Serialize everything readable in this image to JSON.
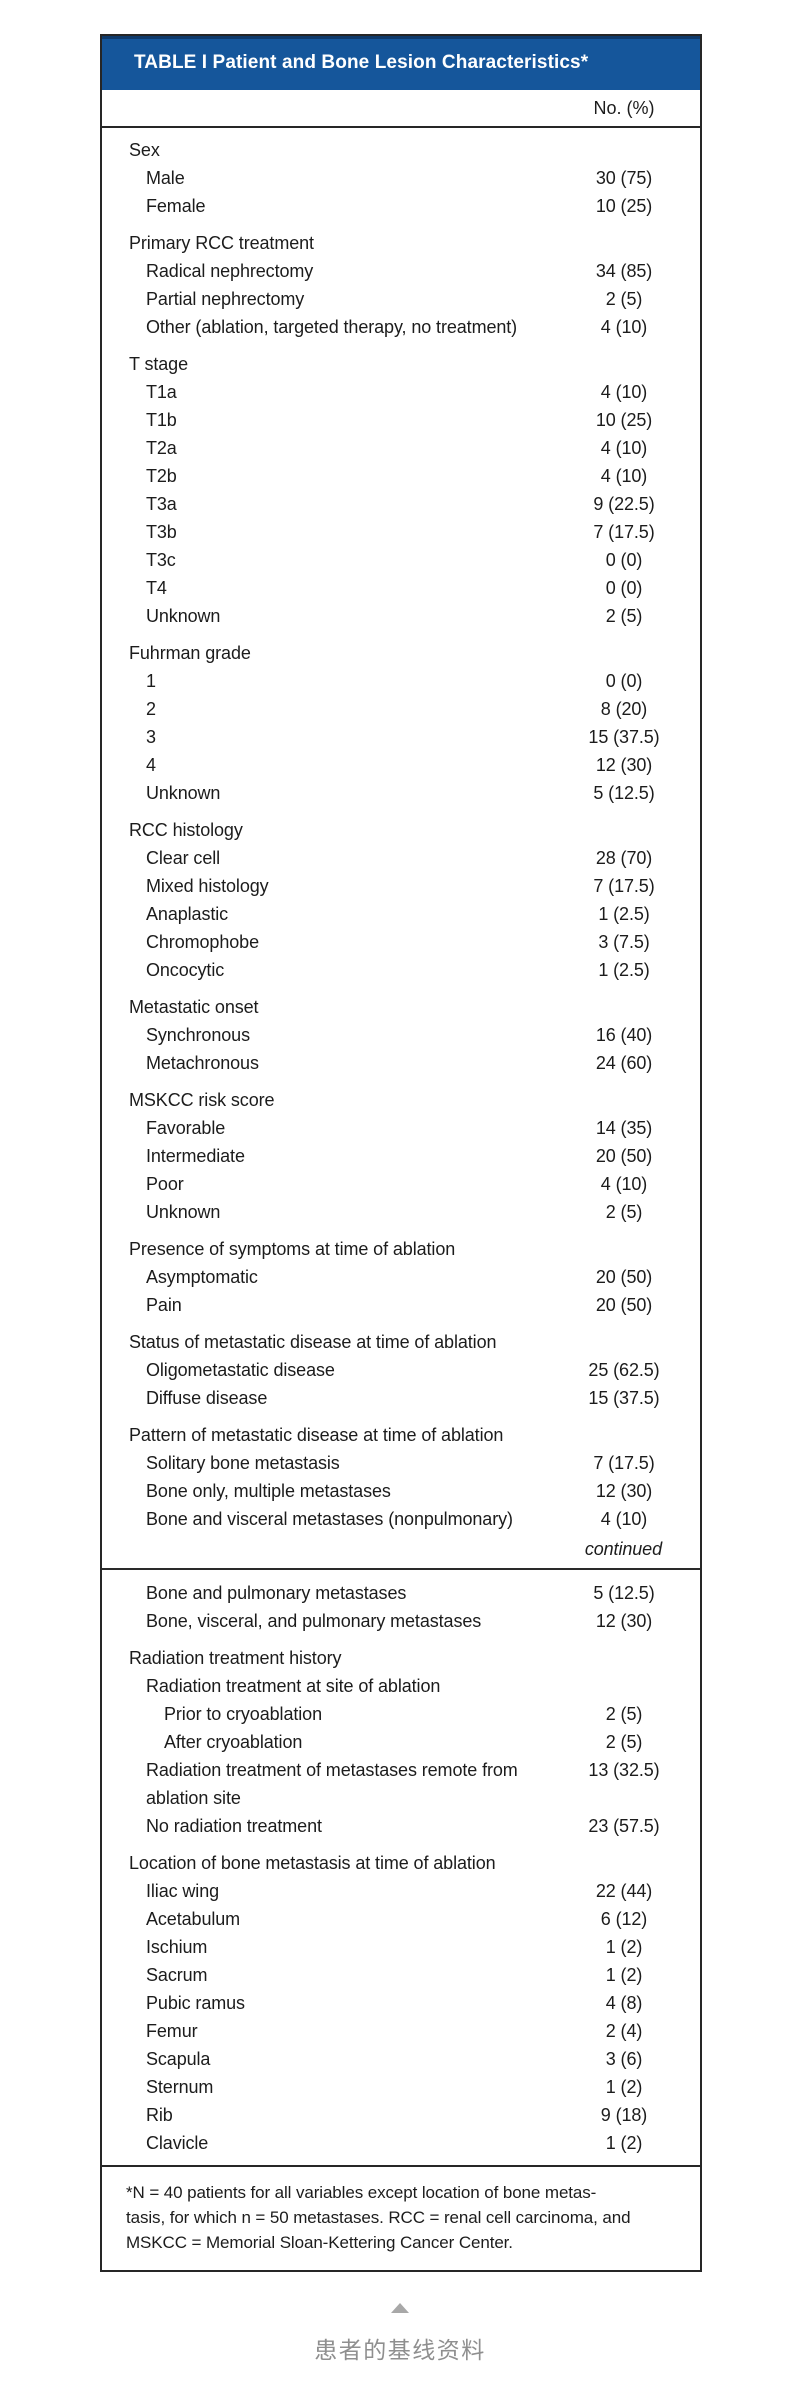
{
  "colors": {
    "header_bg": "#15569b",
    "header_top_edge": "#0e3a6b",
    "border": "#262626",
    "body_text": "#1c1c1c",
    "caption_text": "#8f8f8f",
    "triangle": "#a8a8a8"
  },
  "table": {
    "title": "TABLE I Patient and Bone Lesion Characteristics*",
    "column_header": "No. (%)",
    "rows": [
      {
        "type": "section",
        "label": "Sex"
      },
      {
        "type": "item",
        "indent": 1,
        "label": "Male",
        "value": "30 (75)"
      },
      {
        "type": "item",
        "indent": 1,
        "label": "Female",
        "value": "10 (25)"
      },
      {
        "type": "section",
        "label": "Primary RCC treatment"
      },
      {
        "type": "item",
        "indent": 1,
        "label": "Radical nephrectomy",
        "value": "34 (85)"
      },
      {
        "type": "item",
        "indent": 1,
        "label": "Partial nephrectomy",
        "value": "2 (5)"
      },
      {
        "type": "item",
        "indent": 1,
        "label": "Other (ablation, targeted therapy, no treatment)",
        "value": "4 (10)"
      },
      {
        "type": "section",
        "label": "T stage"
      },
      {
        "type": "item",
        "indent": 1,
        "label": "T1a",
        "value": "4 (10)"
      },
      {
        "type": "item",
        "indent": 1,
        "label": "T1b",
        "value": "10 (25)"
      },
      {
        "type": "item",
        "indent": 1,
        "label": "T2a",
        "value": "4 (10)"
      },
      {
        "type": "item",
        "indent": 1,
        "label": "T2b",
        "value": "4 (10)"
      },
      {
        "type": "item",
        "indent": 1,
        "label": "T3a",
        "value": "9 (22.5)"
      },
      {
        "type": "item",
        "indent": 1,
        "label": "T3b",
        "value": "7 (17.5)"
      },
      {
        "type": "item",
        "indent": 1,
        "label": "T3c",
        "value": "0 (0)"
      },
      {
        "type": "item",
        "indent": 1,
        "label": "T4",
        "value": "0 (0)"
      },
      {
        "type": "item",
        "indent": 1,
        "label": "Unknown",
        "value": "2 (5)"
      },
      {
        "type": "section",
        "label": "Fuhrman grade"
      },
      {
        "type": "item",
        "indent": 1,
        "label": "1",
        "value": "0 (0)"
      },
      {
        "type": "item",
        "indent": 1,
        "label": "2",
        "value": "8 (20)"
      },
      {
        "type": "item",
        "indent": 1,
        "label": "3",
        "value": "15 (37.5)"
      },
      {
        "type": "item",
        "indent": 1,
        "label": "4",
        "value": "12 (30)"
      },
      {
        "type": "item",
        "indent": 1,
        "label": "Unknown",
        "value": "5 (12.5)"
      },
      {
        "type": "section",
        "label": "RCC histology"
      },
      {
        "type": "item",
        "indent": 1,
        "label": "Clear cell",
        "value": "28 (70)"
      },
      {
        "type": "item",
        "indent": 1,
        "label": "Mixed histology",
        "value": "7 (17.5)"
      },
      {
        "type": "item",
        "indent": 1,
        "label": "Anaplastic",
        "value": "1 (2.5)"
      },
      {
        "type": "item",
        "indent": 1,
        "label": "Chromophobe",
        "value": "3 (7.5)"
      },
      {
        "type": "item",
        "indent": 1,
        "label": "Oncocytic",
        "value": "1 (2.5)"
      },
      {
        "type": "section",
        "label": "Metastatic onset"
      },
      {
        "type": "item",
        "indent": 1,
        "label": "Synchronous",
        "value": "16 (40)"
      },
      {
        "type": "item",
        "indent": 1,
        "label": "Metachronous",
        "value": "24 (60)"
      },
      {
        "type": "section",
        "label": "MSKCC risk score"
      },
      {
        "type": "item",
        "indent": 1,
        "label": "Favorable",
        "value": "14 (35)"
      },
      {
        "type": "item",
        "indent": 1,
        "label": "Intermediate",
        "value": "20 (50)"
      },
      {
        "type": "item",
        "indent": 1,
        "label": "Poor",
        "value": "4 (10)"
      },
      {
        "type": "item",
        "indent": 1,
        "label": "Unknown",
        "value": "2 (5)"
      },
      {
        "type": "section",
        "label": "Presence of symptoms at time of ablation"
      },
      {
        "type": "item",
        "indent": 1,
        "label": "Asymptomatic",
        "value": "20 (50)"
      },
      {
        "type": "item",
        "indent": 1,
        "label": "Pain",
        "value": "20 (50)"
      },
      {
        "type": "section",
        "label": "Status of metastatic disease at time of ablation"
      },
      {
        "type": "item",
        "indent": 1,
        "label": "Oligometastatic disease",
        "value": "25 (62.5)"
      },
      {
        "type": "item",
        "indent": 1,
        "label": "Diffuse disease",
        "value": "15 (37.5)"
      },
      {
        "type": "section",
        "label": "Pattern of metastatic disease at time of ablation"
      },
      {
        "type": "item",
        "indent": 1,
        "label": "Solitary bone metastasis",
        "value": "7 (17.5)"
      },
      {
        "type": "item",
        "indent": 1,
        "label": "Bone only, multiple metastases",
        "value": "12 (30)"
      },
      {
        "type": "item",
        "indent": 1,
        "label": "Bone and visceral metastases (nonpulmonary)",
        "value": "4 (10)"
      },
      {
        "type": "continued",
        "label": "continued"
      },
      {
        "type": "rule"
      },
      {
        "type": "item",
        "indent": 1,
        "label": "Bone and pulmonary metastases",
        "value": "5 (12.5)"
      },
      {
        "type": "item",
        "indent": 1,
        "label": "Bone, visceral, and pulmonary metastases",
        "value": "12 (30)"
      },
      {
        "type": "section",
        "label": "Radiation treatment history"
      },
      {
        "type": "item",
        "indent": 1,
        "label": "Radiation treatment at site of ablation",
        "value": ""
      },
      {
        "type": "item",
        "indent": 2,
        "label": "Prior to cryoablation",
        "value": "2 (5)"
      },
      {
        "type": "item",
        "indent": 2,
        "label": "After cryoablation",
        "value": "2 (5)"
      },
      {
        "type": "item",
        "indent": 1,
        "label": "Radiation treatment of metastases remote from ablation site",
        "value": "13 (32.5)"
      },
      {
        "type": "item",
        "indent": 1,
        "label": "No radiation treatment",
        "value": "23 (57.5)"
      },
      {
        "type": "section",
        "label": "Location of bone metastasis at time of ablation"
      },
      {
        "type": "item",
        "indent": 1,
        "label": "Iliac wing",
        "value": "22 (44)"
      },
      {
        "type": "item",
        "indent": 1,
        "label": "Acetabulum",
        "value": "6 (12)"
      },
      {
        "type": "item",
        "indent": 1,
        "label": "Ischium",
        "value": "1 (2)"
      },
      {
        "type": "item",
        "indent": 1,
        "label": "Sacrum",
        "value": "1 (2)"
      },
      {
        "type": "item",
        "indent": 1,
        "label": "Pubic ramus",
        "value": "4 (8)"
      },
      {
        "type": "item",
        "indent": 1,
        "label": "Femur",
        "value": "2 (4)"
      },
      {
        "type": "item",
        "indent": 1,
        "label": "Scapula",
        "value": "3 (6)"
      },
      {
        "type": "item",
        "indent": 1,
        "label": "Sternum",
        "value": "1 (2)"
      },
      {
        "type": "item",
        "indent": 1,
        "label": "Rib",
        "value": "9 (18)"
      },
      {
        "type": "item",
        "indent": 1,
        "label": "Clavicle",
        "value": "1 (2)"
      }
    ],
    "footnote_lines": [
      "*N = 40 patients for all variables except location of bone metas-",
      "tasis, for which n = 50 metastases. RCC = renal cell carcinoma, and",
      "MSKCC = Memorial Sloan-Kettering Cancer Center."
    ]
  },
  "caption": {
    "arrow_icon": "up-triangle",
    "text": "患者的基线资料"
  }
}
